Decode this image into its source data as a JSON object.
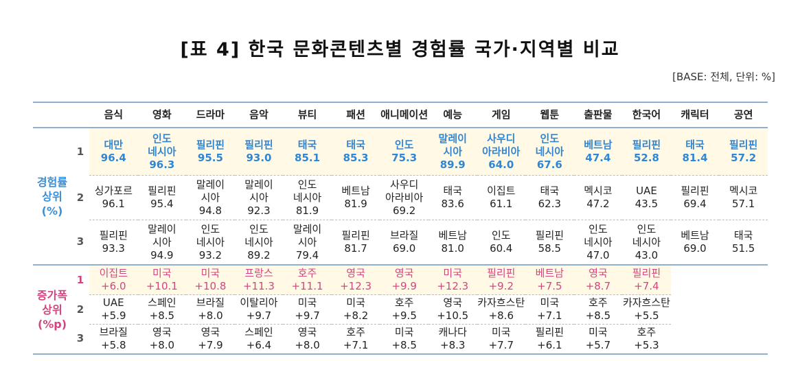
{
  "title": "[표 4] 한국 문화콘텐츠별 경험률 국가·지역별 비교",
  "base": "[BASE: 전체, 단위: %]",
  "headers": [
    "음식",
    "영화",
    "드라마",
    "음악",
    "뷰티",
    "패션",
    "애니메이션",
    "예능",
    "게임",
    "웹툰",
    "출판물",
    "한국어",
    "캐릭터",
    "공연"
  ],
  "groups": {
    "experience": [
      "경험률",
      "상위",
      "(%)"
    ],
    "increase": [
      "증가폭",
      "상위",
      "(%p)"
    ]
  },
  "experience_rows": [
    {
      "rank": "1",
      "cells": [
        {
          "country": [
            "대만"
          ],
          "value": "96.4"
        },
        {
          "country": [
            "인도",
            "네시아"
          ],
          "value": "96.3"
        },
        {
          "country": [
            "필리핀"
          ],
          "value": "95.5"
        },
        {
          "country": [
            "필리핀"
          ],
          "value": "93.0"
        },
        {
          "country": [
            "태국"
          ],
          "value": "85.1"
        },
        {
          "country": [
            "태국"
          ],
          "value": "85.3"
        },
        {
          "country": [
            "인도"
          ],
          "value": "75.3"
        },
        {
          "country": [
            "말레이",
            "시아"
          ],
          "value": "89.9"
        },
        {
          "country": [
            "사우디",
            "아라비아"
          ],
          "value": "64.0"
        },
        {
          "country": [
            "인도",
            "네시아"
          ],
          "value": "67.6"
        },
        {
          "country": [
            "베트남"
          ],
          "value": "47.4"
        },
        {
          "country": [
            "필리핀"
          ],
          "value": "52.8"
        },
        {
          "country": [
            "태국"
          ],
          "value": "81.4"
        },
        {
          "country": [
            "필리핀"
          ],
          "value": "57.2"
        }
      ]
    },
    {
      "rank": "2",
      "cells": [
        {
          "country": [
            "싱가포르"
          ],
          "value": "96.1"
        },
        {
          "country": [
            "필리핀"
          ],
          "value": "95.4"
        },
        {
          "country": [
            "말레이",
            "시아"
          ],
          "value": "94.8"
        },
        {
          "country": [
            "말레이",
            "시아"
          ],
          "value": "92.3"
        },
        {
          "country": [
            "인도",
            "네시아"
          ],
          "value": "81.9"
        },
        {
          "country": [
            "베트남"
          ],
          "value": "81.9"
        },
        {
          "country": [
            "사우디",
            "아라비아"
          ],
          "value": "69.2"
        },
        {
          "country": [
            "태국"
          ],
          "value": "83.6"
        },
        {
          "country": [
            "이집트"
          ],
          "value": "61.1"
        },
        {
          "country": [
            "태국"
          ],
          "value": "62.3"
        },
        {
          "country": [
            "멕시코"
          ],
          "value": "47.2"
        },
        {
          "country": [
            "UAE"
          ],
          "value": "43.5"
        },
        {
          "country": [
            "필리핀"
          ],
          "value": "69.4"
        },
        {
          "country": [
            "멕시코"
          ],
          "value": "57.1"
        }
      ]
    },
    {
      "rank": "3",
      "cells": [
        {
          "country": [
            "필리핀"
          ],
          "value": "93.3"
        },
        {
          "country": [
            "말레이",
            "시아"
          ],
          "value": "94.9"
        },
        {
          "country": [
            "인도",
            "네시아"
          ],
          "value": "93.2"
        },
        {
          "country": [
            "인도",
            "네시아"
          ],
          "value": "89.2"
        },
        {
          "country": [
            "말레이",
            "시아"
          ],
          "value": "79.4"
        },
        {
          "country": [
            "필리핀"
          ],
          "value": "81.7"
        },
        {
          "country": [
            "브라질"
          ],
          "value": "69.0"
        },
        {
          "country": [
            "베트남"
          ],
          "value": "81.0"
        },
        {
          "country": [
            "인도"
          ],
          "value": "60.4"
        },
        {
          "country": [
            "필리핀"
          ],
          "value": "58.5"
        },
        {
          "country": [
            "인도",
            "네시아"
          ],
          "value": "47.0"
        },
        {
          "country": [
            "인도",
            "네시아"
          ],
          "value": "43.0"
        },
        {
          "country": [
            "베트남"
          ],
          "value": "69.0"
        },
        {
          "country": [
            "태국"
          ],
          "value": "51.5"
        }
      ]
    }
  ],
  "increase_rows": [
    {
      "rank": "1",
      "cells": [
        {
          "country": "이집트",
          "value": "+6.0"
        },
        {
          "country": "미국",
          "value": "+10.1"
        },
        {
          "country": "미국",
          "value": "+10.8"
        },
        {
          "country": "프랑스",
          "value": "+11.3"
        },
        {
          "country": "호주",
          "value": "+11.1"
        },
        {
          "country": "영국",
          "value": "+12.3"
        },
        {
          "country": "영국",
          "value": "+9.9"
        },
        {
          "country": "미국",
          "value": "+12.3"
        },
        {
          "country": "필리핀",
          "value": "+9.2"
        },
        {
          "country": "베트남",
          "value": "+7.5"
        },
        {
          "country": "영국",
          "value": "+8.7"
        },
        {
          "country": "필리핀",
          "value": "+7.4"
        }
      ]
    },
    {
      "rank": "2",
      "cells": [
        {
          "country": "UAE",
          "value": "+5.9"
        },
        {
          "country": "스페인",
          "value": "+8.5"
        },
        {
          "country": "브라질",
          "value": "+8.0"
        },
        {
          "country": "이탈리아",
          "value": "+9.7"
        },
        {
          "country": "미국",
          "value": "+9.7"
        },
        {
          "country": "미국",
          "value": "+8.2"
        },
        {
          "country": "호주",
          "value": "+9.5"
        },
        {
          "country": "영국",
          "value": "+10.5"
        },
        {
          "country": "카자흐스탄",
          "value": "+8.6"
        },
        {
          "country": "미국",
          "value": "+7.1"
        },
        {
          "country": "호주",
          "value": "+8.5"
        },
        {
          "country": "카자흐스탄",
          "value": "+5.5"
        }
      ]
    },
    {
      "rank": "3",
      "cells": [
        {
          "country": "브라질",
          "value": "+5.8"
        },
        {
          "country": "영국",
          "value": "+8.0"
        },
        {
          "country": "영국",
          "value": "+7.9"
        },
        {
          "country": "스페인",
          "value": "+6.4"
        },
        {
          "country": "영국",
          "value": "+8.0"
        },
        {
          "country": "호주",
          "value": "+7.1"
        },
        {
          "country": "미국",
          "value": "+8.5"
        },
        {
          "country": "캐나다",
          "value": "+8.3"
        },
        {
          "country": "미국",
          "value": "+7.7"
        },
        {
          "country": "필리핀",
          "value": "+6.1"
        },
        {
          "country": "미국",
          "value": "+5.7"
        },
        {
          "country": "호주",
          "value": "+5.3"
        }
      ]
    }
  ]
}
